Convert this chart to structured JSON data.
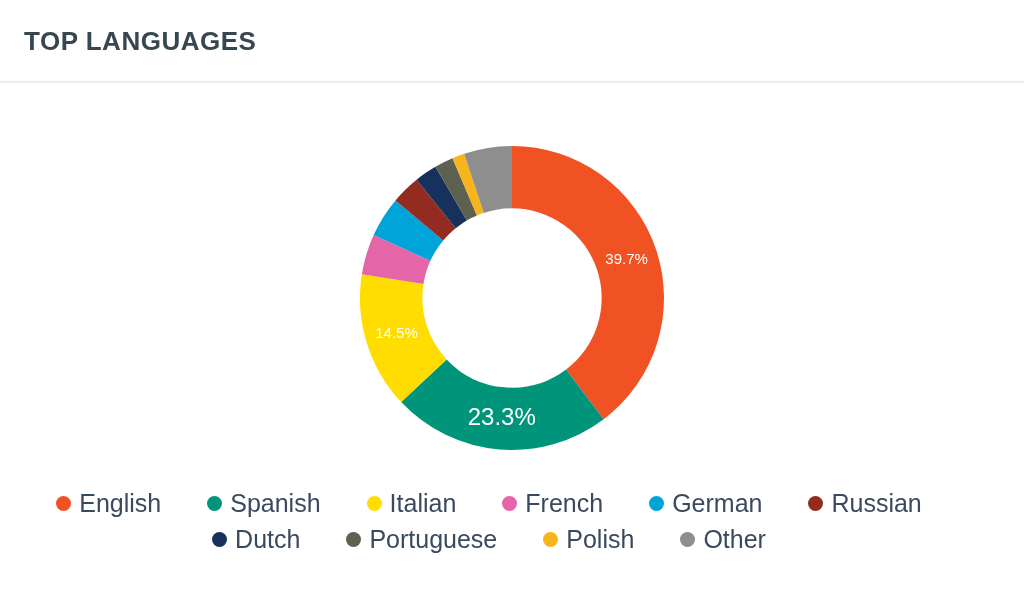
{
  "chart_data": {
    "type": "donut",
    "title": "TOP LANGUAGES",
    "categories": [
      "English",
      "Spanish",
      "Italian",
      "French",
      "German",
      "Russian",
      "Dutch",
      "Portuguese",
      "Polish",
      "Other"
    ],
    "values": [
      39.7,
      23.3,
      14.5,
      4.3,
      4.3,
      3.1,
      2.4,
      2.0,
      1.3,
      5.1
    ],
    "colors": [
      "#f05223",
      "#00957a",
      "#ffdd00",
      "#e465a8",
      "#00a4d9",
      "#932b21",
      "#16325c",
      "#5d6150",
      "#f8b41d",
      "#8e8e8e"
    ],
    "value_labels": [
      "39.7%",
      "23.3%",
      "14.5%",
      null,
      null,
      null,
      null,
      null,
      null,
      null
    ],
    "legend": "bottom"
  }
}
